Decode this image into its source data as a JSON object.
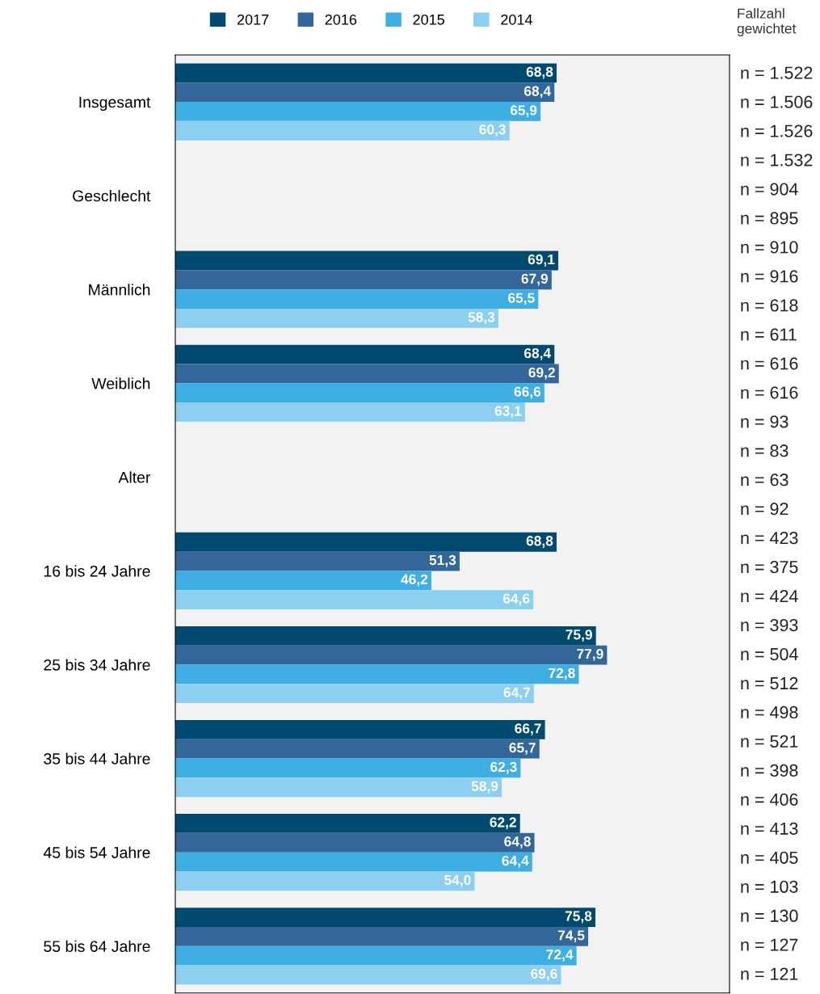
{
  "chart_data": {
    "type": "bar",
    "orientation": "horizontal",
    "xlim": [
      0,
      100
    ],
    "tick_labels": "y",
    "grid": false,
    "legend": "top",
    "categories": [
      "Insgesamt",
      "Geschlecht",
      "Männlich",
      "Weiblich",
      "Alter",
      "16 bis 24 Jahre",
      "25 bis 34 Jahre",
      "35 bis 44 Jahre",
      "45 bis 54 Jahre",
      "55 bis 64 Jahre"
    ],
    "series": [
      {
        "name": "2017",
        "color": "#004a70",
        "values": [
          68.8,
          null,
          69.1,
          68.4,
          null,
          68.8,
          75.9,
          66.7,
          62.2,
          75.8
        ],
        "value_labels": [
          "68,8",
          null,
          "69,1",
          "68,4",
          null,
          "68,8",
          "75,9",
          "66,7",
          "62,2",
          "75,8"
        ]
      },
      {
        "name": "2016",
        "color": "#336699",
        "values": [
          68.4,
          null,
          67.9,
          69.2,
          null,
          51.3,
          77.9,
          65.7,
          64.8,
          74.5
        ],
        "value_labels": [
          "68,4",
          null,
          "67,9",
          "69,2",
          null,
          "51,3",
          "77,9",
          "65,7",
          "64,8",
          "74,5"
        ]
      },
      {
        "name": "2015",
        "color": "#3eaee3",
        "values": [
          65.9,
          null,
          65.5,
          66.6,
          null,
          46.2,
          72.8,
          62.3,
          64.4,
          72.4
        ],
        "value_labels": [
          "65,9",
          null,
          "65,5",
          "66,6",
          null,
          "46,2",
          "72,8",
          "62,3",
          "64,4",
          "72,4"
        ]
      },
      {
        "name": "2014",
        "color": "#8ccff0",
        "values": [
          60.3,
          null,
          58.3,
          63.1,
          null,
          64.6,
          64.7,
          58.9,
          54.0,
          69.6
        ],
        "value_labels": [
          "60,3",
          null,
          "58,3",
          "63,1",
          null,
          "64,6",
          "64,7",
          "58,9",
          "54,0",
          "69,6"
        ]
      }
    ],
    "annotations": [
      "Fallzahl\ngewichtet",
      "n = 1.522",
      "n = 1.506",
      "n = 1.526",
      "n = 1.532",
      "n = 904",
      "n = 895",
      "n = 910",
      "n = 916",
      "n = 618",
      "n = 611",
      "n = 616",
      "n = 616",
      "n = 93",
      "n = 83",
      "n = 63",
      "n = 92",
      "n = 423",
      "n = 375",
      "n = 424",
      "n = 393",
      "n = 504",
      "n = 512",
      "n = 498",
      "n = 521",
      "n = 398",
      "n = 406",
      "n = 413",
      "n = 405",
      "n = 103",
      "n = 130",
      "n = 127",
      "n = 121"
    ]
  }
}
